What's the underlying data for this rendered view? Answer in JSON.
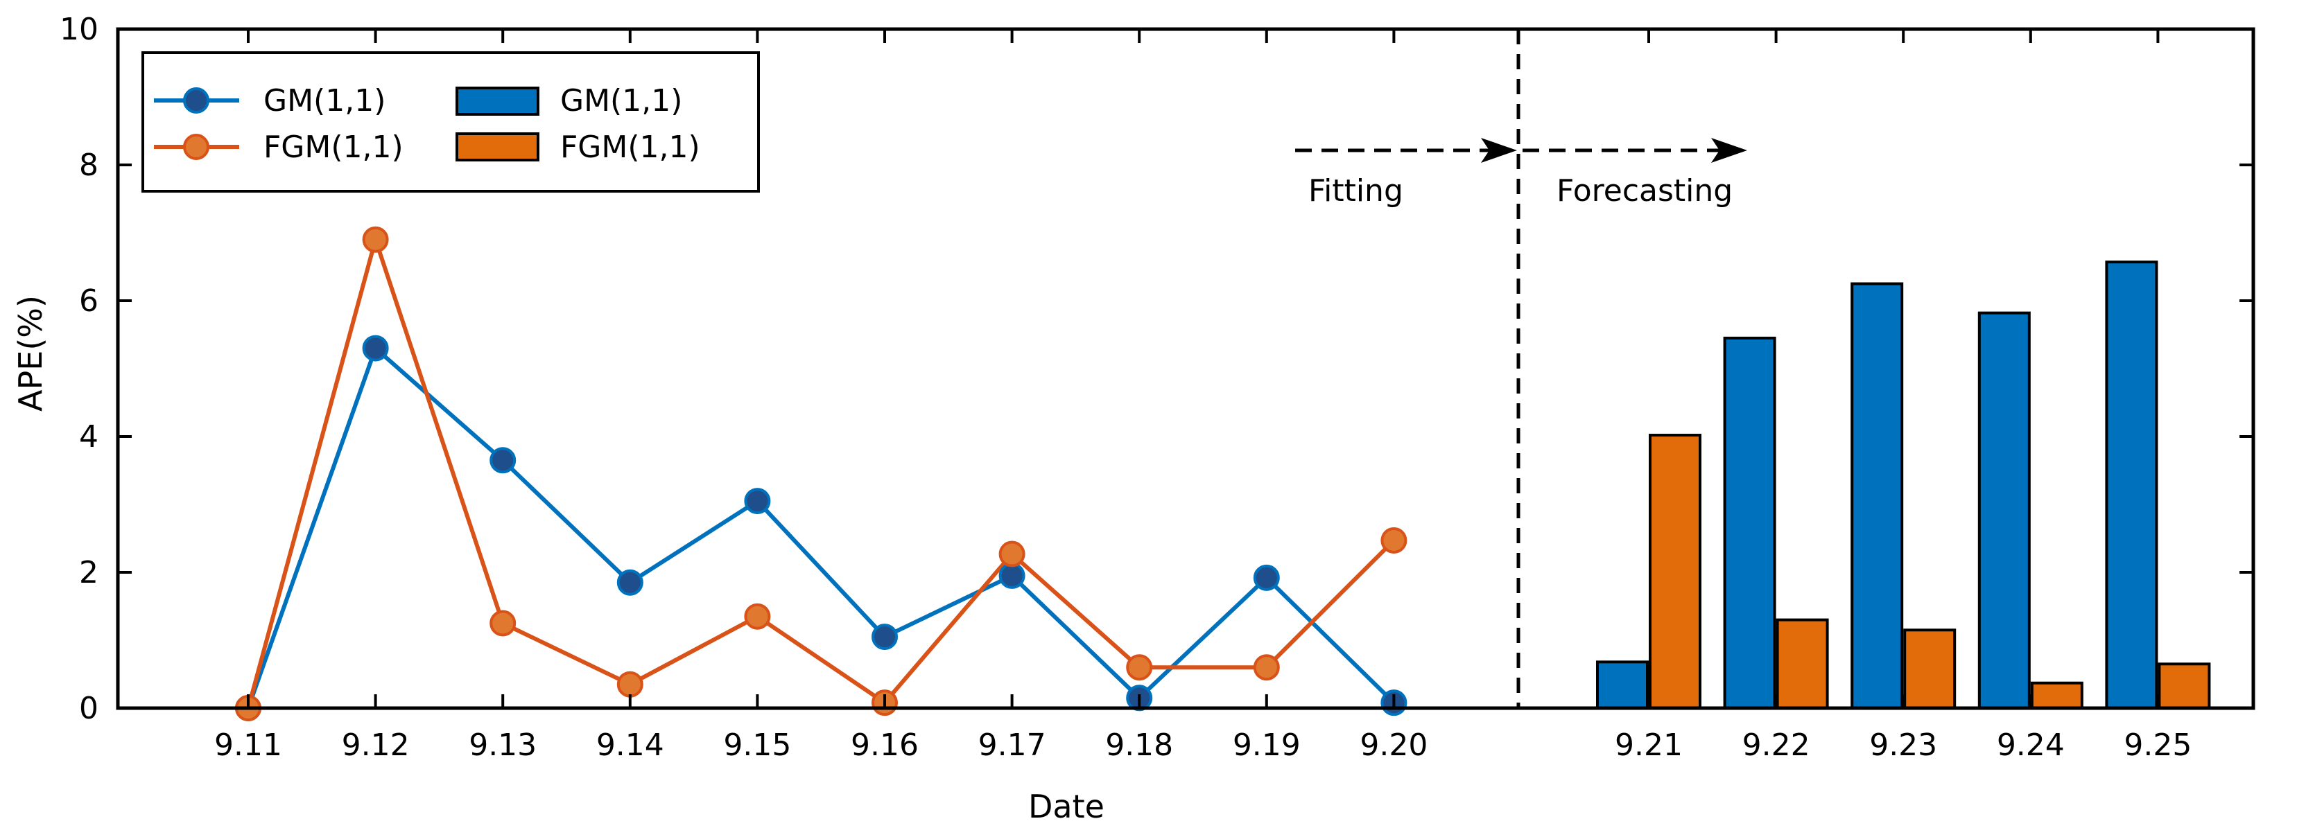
{
  "chart_data": {
    "type": "line+bar",
    "xlabel": "Date",
    "ylabel": "APE(%)",
    "ylim": [
      0,
      10
    ],
    "yticks": [
      0,
      2,
      4,
      6,
      8,
      10
    ],
    "fitting_dates": [
      "9.11",
      "9.12",
      "9.13",
      "9.14",
      "9.15",
      "9.16",
      "9.17",
      "9.18",
      "9.19",
      "9.20"
    ],
    "forecast_dates": [
      "9.21",
      "9.22",
      "9.23",
      "9.24",
      "9.25"
    ],
    "line_series": [
      {
        "name": "GM(1,1)",
        "color": "#0072BD",
        "marker_fill": "#1F4E8C",
        "values": [
          0.0,
          5.3,
          3.65,
          1.85,
          3.05,
          1.05,
          1.95,
          0.15,
          1.92,
          0.08
        ]
      },
      {
        "name": "FGM(1,1)",
        "color": "#D95319",
        "marker_fill": "#E0782F",
        "values": [
          0.0,
          6.9,
          1.25,
          0.35,
          1.35,
          0.08,
          2.27,
          0.6,
          0.6,
          2.47
        ]
      }
    ],
    "bar_series": [
      {
        "name": "GM(1,1)",
        "color": "#0072BD",
        "values": [
          0.68,
          5.45,
          6.25,
          5.82,
          6.57
        ]
      },
      {
        "name": "FGM(1,1)",
        "color": "#E36C0A",
        "values": [
          4.02,
          1.3,
          1.15,
          0.37,
          0.65
        ]
      }
    ],
    "annotations": {
      "fitting": "Fitting",
      "forecasting": "Forecasting"
    },
    "legend_position": "top-left",
    "grid": false
  }
}
